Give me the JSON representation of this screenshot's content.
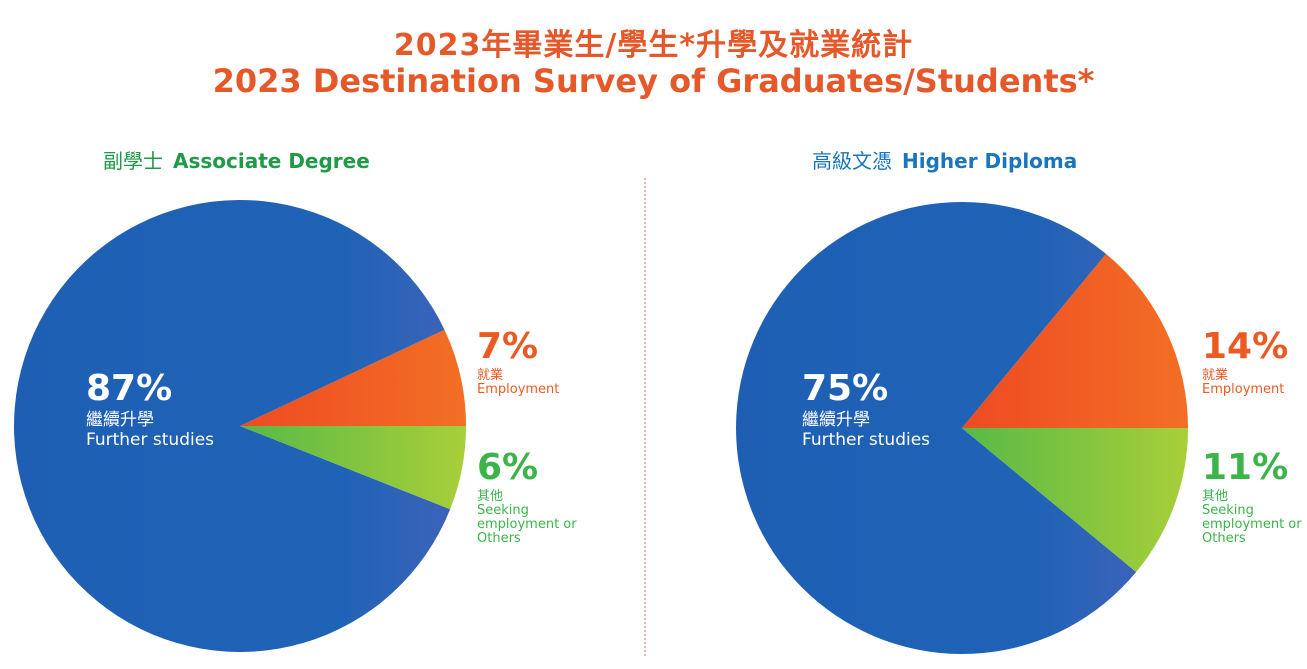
{
  "header": {
    "title_zh": "2023年畢業生/學生*升學及就業統計",
    "title_en": "2023 Destination Survey of Graduates/Students*"
  },
  "colors": {
    "title": "#e5582a",
    "further_studies": "#1f63b6",
    "employment": "#f26522",
    "others": "#8dc63f",
    "associate_degree_heading": "#1f9a46",
    "higher_diploma_heading": "#1a75bc"
  },
  "chart_data": [
    {
      "type": "pie",
      "title_zh": "副學士",
      "title_en": "Associate Degree",
      "slices": [
        {
          "key": "further",
          "value": 87,
          "pct": "87%",
          "label_zh": "繼續升學",
          "label_en": "Further studies"
        },
        {
          "key": "employment",
          "value": 7,
          "pct": "7%",
          "label_zh": "就業",
          "label_en": "Employment"
        },
        {
          "key": "others",
          "value": 6,
          "pct": "6%",
          "label_zh": "其他",
          "label_en": "Seeking employment or Others"
        }
      ]
    },
    {
      "type": "pie",
      "title_zh": "高級文憑",
      "title_en": "Higher Diploma",
      "slices": [
        {
          "key": "further",
          "value": 75,
          "pct": "75%",
          "label_zh": "繼續升學",
          "label_en": "Further studies"
        },
        {
          "key": "employment",
          "value": 14,
          "pct": "14%",
          "label_zh": "就業",
          "label_en": "Employment"
        },
        {
          "key": "others",
          "value": 11,
          "pct": "11%",
          "label_zh": "其他",
          "label_en": "Seeking employment or Others"
        }
      ]
    }
  ]
}
